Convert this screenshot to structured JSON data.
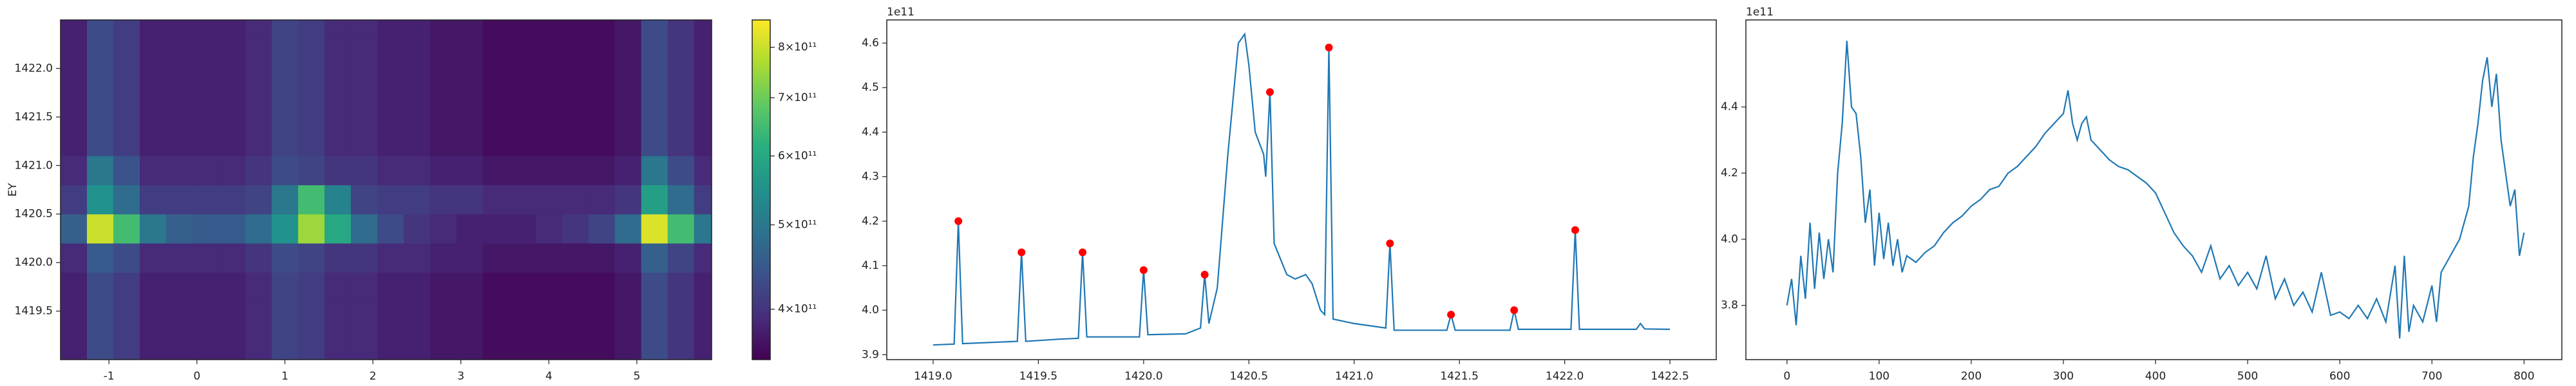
{
  "chart_data": [
    {
      "type": "heatmap",
      "ylabel": "EY",
      "colormap": "viridis",
      "clog": true,
      "x": [
        -1.4,
        -1.1,
        -0.8,
        -0.5,
        -0.2,
        0.1,
        0.4,
        0.7,
        1.0,
        1.3,
        1.6,
        1.9,
        2.2,
        2.5,
        2.8,
        3.1,
        3.4,
        3.7,
        4.0,
        4.3,
        4.6,
        4.9,
        5.2,
        5.5,
        5.8
      ],
      "y": [
        1419.15,
        1419.45,
        1419.75,
        1420.05,
        1420.35,
        1420.65,
        1420.95,
        1421.25,
        1421.55,
        1421.85,
        1422.15,
        1422.45
      ],
      "z": [
        [
          380000000000.0,
          430000000000.0,
          410000000000.0,
          380000000000.0,
          380000000000.0,
          380000000000.0,
          380000000000.0,
          390000000000.0,
          420000000000.0,
          410000000000.0,
          390000000000.0,
          390000000000.0,
          380000000000.0,
          380000000000.0,
          370000000000.0,
          370000000000.0,
          360000000000.0,
          360000000000.0,
          360000000000.0,
          360000000000.0,
          360000000000.0,
          370000000000.0,
          430000000000.0,
          400000000000.0,
          380000000000.0
        ],
        [
          380000000000.0,
          430000000000.0,
          410000000000.0,
          380000000000.0,
          380000000000.0,
          380000000000.0,
          380000000000.0,
          390000000000.0,
          420000000000.0,
          410000000000.0,
          390000000000.0,
          390000000000.0,
          380000000000.0,
          380000000000.0,
          370000000000.0,
          370000000000.0,
          360000000000.0,
          360000000000.0,
          360000000000.0,
          360000000000.0,
          360000000000.0,
          370000000000.0,
          430000000000.0,
          400000000000.0,
          380000000000.0
        ],
        [
          380000000000.0,
          430000000000.0,
          410000000000.0,
          380000000000.0,
          380000000000.0,
          380000000000.0,
          380000000000.0,
          390000000000.0,
          420000000000.0,
          410000000000.0,
          390000000000.0,
          390000000000.0,
          380000000000.0,
          380000000000.0,
          370000000000.0,
          370000000000.0,
          360000000000.0,
          360000000000.0,
          360000000000.0,
          360000000000.0,
          360000000000.0,
          370000000000.0,
          430000000000.0,
          400000000000.0,
          380000000000.0
        ],
        [
          390000000000.0,
          450000000000.0,
          430000000000.0,
          390000000000.0,
          390000000000.0,
          390000000000.0,
          390000000000.0,
          400000000000.0,
          430000000000.0,
          420000000000.0,
          400000000000.0,
          400000000000.0,
          390000000000.0,
          390000000000.0,
          380000000000.0,
          380000000000.0,
          370000000000.0,
          370000000000.0,
          370000000000.0,
          370000000000.0,
          370000000000.0,
          380000000000.0,
          460000000000.0,
          420000000000.0,
          390000000000.0
        ],
        [
          460000000000.0,
          800000000000.0,
          650000000000.0,
          500000000000.0,
          460000000000.0,
          450000000000.0,
          450000000000.0,
          480000000000.0,
          550000000000.0,
          750000000000.0,
          600000000000.0,
          480000000000.0,
          430000000000.0,
          400000000000.0,
          390000000000.0,
          380000000000.0,
          380000000000.0,
          380000000000.0,
          390000000000.0,
          400000000000.0,
          420000000000.0,
          480000000000.0,
          820000000000.0,
          650000000000.0,
          500000000000.0
        ],
        [
          410000000000.0,
          550000000000.0,
          480000000000.0,
          410000000000.0,
          410000000000.0,
          410000000000.0,
          410000000000.0,
          420000000000.0,
          500000000000.0,
          650000000000.0,
          520000000000.0,
          420000000000.0,
          410000000000.0,
          410000000000.0,
          400000000000.0,
          400000000000.0,
          390000000000.0,
          390000000000.0,
          390000000000.0,
          390000000000.0,
          390000000000.0,
          400000000000.0,
          580000000000.0,
          480000000000.0,
          410000000000.0
        ],
        [
          390000000000.0,
          500000000000.0,
          440000000000.0,
          390000000000.0,
          390000000000.0,
          390000000000.0,
          390000000000.0,
          400000000000.0,
          430000000000.0,
          420000000000.0,
          400000000000.0,
          400000000000.0,
          390000000000.0,
          390000000000.0,
          380000000000.0,
          380000000000.0,
          370000000000.0,
          370000000000.0,
          370000000000.0,
          370000000000.0,
          370000000000.0,
          380000000000.0,
          500000000000.0,
          430000000000.0,
          390000000000.0
        ],
        [
          380000000000.0,
          430000000000.0,
          410000000000.0,
          380000000000.0,
          380000000000.0,
          380000000000.0,
          380000000000.0,
          390000000000.0,
          420000000000.0,
          410000000000.0,
          390000000000.0,
          390000000000.0,
          380000000000.0,
          380000000000.0,
          370000000000.0,
          370000000000.0,
          360000000000.0,
          360000000000.0,
          360000000000.0,
          360000000000.0,
          360000000000.0,
          370000000000.0,
          430000000000.0,
          400000000000.0,
          380000000000.0
        ],
        [
          380000000000.0,
          430000000000.0,
          410000000000.0,
          380000000000.0,
          380000000000.0,
          380000000000.0,
          380000000000.0,
          390000000000.0,
          420000000000.0,
          410000000000.0,
          390000000000.0,
          390000000000.0,
          380000000000.0,
          380000000000.0,
          370000000000.0,
          370000000000.0,
          360000000000.0,
          360000000000.0,
          360000000000.0,
          360000000000.0,
          360000000000.0,
          370000000000.0,
          430000000000.0,
          400000000000.0,
          380000000000.0
        ],
        [
          380000000000.0,
          430000000000.0,
          410000000000.0,
          380000000000.0,
          380000000000.0,
          380000000000.0,
          380000000000.0,
          390000000000.0,
          420000000000.0,
          410000000000.0,
          390000000000.0,
          390000000000.0,
          380000000000.0,
          380000000000.0,
          370000000000.0,
          370000000000.0,
          360000000000.0,
          360000000000.0,
          360000000000.0,
          360000000000.0,
          360000000000.0,
          370000000000.0,
          430000000000.0,
          400000000000.0,
          380000000000.0
        ],
        [
          380000000000.0,
          430000000000.0,
          410000000000.0,
          380000000000.0,
          380000000000.0,
          380000000000.0,
          380000000000.0,
          390000000000.0,
          420000000000.0,
          410000000000.0,
          390000000000.0,
          390000000000.0,
          380000000000.0,
          380000000000.0,
          370000000000.0,
          370000000000.0,
          360000000000.0,
          360000000000.0,
          360000000000.0,
          360000000000.0,
          360000000000.0,
          370000000000.0,
          430000000000.0,
          400000000000.0,
          380000000000.0
        ],
        [
          380000000000.0,
          430000000000.0,
          410000000000.0,
          380000000000.0,
          380000000000.0,
          380000000000.0,
          380000000000.0,
          390000000000.0,
          420000000000.0,
          410000000000.0,
          390000000000.0,
          390000000000.0,
          380000000000.0,
          380000000000.0,
          370000000000.0,
          370000000000.0,
          360000000000.0,
          360000000000.0,
          360000000000.0,
          360000000000.0,
          360000000000.0,
          370000000000.0,
          430000000000.0,
          400000000000.0,
          380000000000.0
        ]
      ],
      "xlim": [
        -1.55,
        5.85
      ],
      "ylim": [
        1419.0,
        1422.5
      ],
      "xticks": [
        -1,
        0,
        1,
        2,
        3,
        4,
        5
      ],
      "yticks": [
        1419.5,
        {
          "value": 1420,
          "label": "1420.0"
        },
        1420.5,
        {
          "value": 1421,
          "label": "1421.0"
        },
        1421.5,
        {
          "value": 1422,
          "label": "1422.0"
        }
      ],
      "clim": [
        350000000000.0,
        860000000000.0
      ],
      "cticks": [
        {
          "value": 400000000000.0,
          "label": "4×10¹¹"
        },
        {
          "value": 500000000000.0,
          "label": "5×10¹¹"
        },
        {
          "value": 600000000000.0,
          "label": "6×10¹¹"
        },
        {
          "value": 700000000000.0,
          "label": "7×10¹¹"
        },
        {
          "value": 800000000000.0,
          "label": "8×10¹¹"
        }
      ]
    },
    {
      "type": "line",
      "offset_label": "1e11",
      "x": [
        1419.0,
        1419.1,
        1419.12,
        1419.14,
        1419.4,
        1419.42,
        1419.44,
        1419.6,
        1419.69,
        1419.71,
        1419.73,
        1419.98,
        1420.0,
        1420.02,
        1420.2,
        1420.27,
        1420.29,
        1420.31,
        1420.35,
        1420.4,
        1420.45,
        1420.48,
        1420.5,
        1420.53,
        1420.57,
        1420.58,
        1420.6,
        1420.62,
        1420.68,
        1420.72,
        1420.77,
        1420.8,
        1420.84,
        1420.86,
        1420.88,
        1420.9,
        1421.0,
        1421.15,
        1421.17,
        1421.19,
        1421.44,
        1421.46,
        1421.48,
        1421.74,
        1421.76,
        1421.78,
        1422.03,
        1422.05,
        1422.07,
        1422.34,
        1422.36,
        1422.38,
        1422.5
      ],
      "series": [
        {
          "color": "#1f77b4",
          "values": [
            3.922,
            3.924,
            4.2,
            3.925,
            3.93,
            4.13,
            3.93,
            3.935,
            3.937,
            4.13,
            3.94,
            3.94,
            4.09,
            3.945,
            3.947,
            3.96,
            4.08,
            3.97,
            4.05,
            4.35,
            4.6,
            4.62,
            4.55,
            4.4,
            4.35,
            4.3,
            4.49,
            4.15,
            4.08,
            4.07,
            4.08,
            4.06,
            4.0,
            3.99,
            4.59,
            3.98,
            3.97,
            3.96,
            4.15,
            3.955,
            3.955,
            3.99,
            3.955,
            3.955,
            4.0,
            3.957,
            3.957,
            4.18,
            3.957,
            3.957,
            3.97,
            3.958,
            3.957
          ]
        }
      ],
      "peaks": {
        "color": "#ff0000",
        "x": [
          1419.12,
          1419.42,
          1419.71,
          1420.0,
          1420.29,
          1420.6,
          1420.88,
          1421.17,
          1421.46,
          1421.76,
          1422.05
        ],
        "values": [
          4.2,
          4.13,
          4.13,
          4.09,
          4.08,
          4.49,
          4.59,
          4.15,
          3.99,
          4.0,
          4.18
        ]
      },
      "xlim": [
        1418.78,
        1422.72
      ],
      "ylim": [
        3.889,
        4.652
      ],
      "xticks": [
        {
          "value": 1419,
          "label": "1419.0"
        },
        1419.5,
        {
          "value": 1420,
          "label": "1420.0"
        },
        1420.5,
        {
          "value": 1421,
          "label": "1421.0"
        },
        1421.5,
        {
          "value": 1422,
          "label": "1422.0"
        },
        1422.5
      ],
      "yticks": [
        3.9,
        {
          "value": 4,
          "label": "4.0"
        },
        4.1,
        4.2,
        4.3,
        4.4,
        4.5,
        4.6
      ]
    },
    {
      "type": "line",
      "offset_label": "1e11",
      "x": [
        0,
        5,
        10,
        15,
        20,
        25,
        30,
        35,
        40,
        45,
        50,
        55,
        60,
        65,
        70,
        75,
        80,
        85,
        90,
        95,
        100,
        105,
        110,
        115,
        120,
        125,
        130,
        140,
        150,
        160,
        170,
        180,
        190,
        200,
        210,
        220,
        230,
        240,
        250,
        260,
        270,
        280,
        290,
        300,
        305,
        310,
        315,
        320,
        325,
        330,
        340,
        350,
        360,
        370,
        380,
        390,
        400,
        410,
        420,
        430,
        440,
        450,
        460,
        470,
        480,
        490,
        500,
        510,
        520,
        530,
        540,
        550,
        560,
        570,
        580,
        590,
        600,
        610,
        620,
        630,
        640,
        650,
        660,
        665,
        670,
        675,
        680,
        690,
        700,
        705,
        710,
        720,
        730,
        740,
        745,
        750,
        755,
        760,
        765,
        770,
        775,
        780,
        785,
        790,
        795,
        800
      ],
      "series": [
        {
          "color": "#1f77b4",
          "values": [
            3.8,
            3.88,
            3.74,
            3.95,
            3.82,
            4.05,
            3.85,
            4.02,
            3.88,
            4.0,
            3.9,
            4.2,
            4.35,
            4.6,
            4.4,
            4.38,
            4.25,
            4.05,
            4.15,
            3.92,
            4.08,
            3.94,
            4.05,
            3.92,
            4.0,
            3.9,
            3.95,
            3.93,
            3.96,
            3.98,
            4.02,
            4.05,
            4.07,
            4.1,
            4.12,
            4.15,
            4.16,
            4.2,
            4.22,
            4.25,
            4.28,
            4.32,
            4.35,
            4.38,
            4.45,
            4.35,
            4.3,
            4.35,
            4.37,
            4.3,
            4.27,
            4.24,
            4.22,
            4.21,
            4.19,
            4.17,
            4.14,
            4.08,
            4.02,
            3.98,
            3.95,
            3.9,
            3.98,
            3.88,
            3.92,
            3.86,
            3.9,
            3.85,
            3.95,
            3.82,
            3.88,
            3.8,
            3.84,
            3.78,
            3.9,
            3.77,
            3.78,
            3.76,
            3.8,
            3.76,
            3.82,
            3.75,
            3.92,
            3.7,
            3.95,
            3.72,
            3.8,
            3.75,
            3.86,
            3.75,
            3.9,
            3.95,
            4.0,
            4.1,
            4.25,
            4.35,
            4.48,
            4.55,
            4.4,
            4.5,
            4.3,
            4.2,
            4.1,
            4.15,
            3.95,
            4.02
          ]
        }
      ],
      "xlim": [
        -44.6,
        841
      ],
      "ylim": [
        3.636,
        4.663
      ],
      "xticks": [
        0,
        100,
        200,
        300,
        400,
        500,
        600,
        700,
        800
      ],
      "yticks": [
        {
          "value": 3.8,
          "label": "3.8"
        },
        {
          "value": 4,
          "label": "4.0"
        },
        4.2,
        4.4
      ]
    }
  ]
}
